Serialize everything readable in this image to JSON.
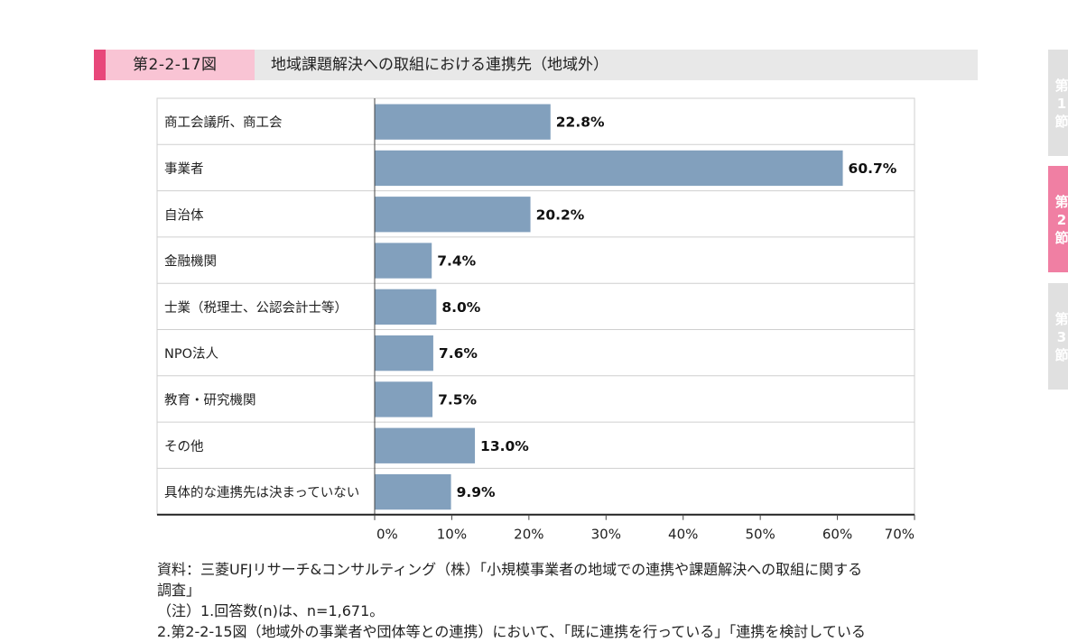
{
  "figure": {
    "number": "第2-2-17図",
    "title": "地域課題解決への取組における連携先（地域外）"
  },
  "chart_data": {
    "type": "bar",
    "orientation": "horizontal",
    "categories": [
      "商工会議所、商工会",
      "事業者",
      "自治体",
      "金融機関",
      "士業（税理士、公認会計士等）",
      "NPO法人",
      "教育・研究機関",
      "その他",
      "具体的な連携先は決まっていない"
    ],
    "values": [
      22.8,
      60.7,
      20.2,
      7.4,
      8.0,
      7.6,
      7.5,
      13.0,
      9.9
    ],
    "value_labels": [
      "22.8%",
      "60.7%",
      "20.2%",
      "7.4%",
      "8.0%",
      "7.6%",
      "7.5%",
      "13.0%",
      "9.9%"
    ],
    "xlim": [
      0,
      70
    ],
    "ticks": [
      0,
      10,
      20,
      30,
      40,
      50,
      60,
      70
    ],
    "tick_labels": [
      "0%",
      "10%",
      "20%",
      "30%",
      "40%",
      "50%",
      "60%",
      "70%"
    ],
    "bar_color": "#82a0bd",
    "grid": false
  },
  "source": {
    "lines": [
      "資料：三菱UFJリサーチ&コンサルティング（株）「小規模事業者の地域での連携や課題解決への取組に関する",
      "調査」",
      "（注）1.回答数(n)は、n=1,671。",
      "2.第2-2-15図（地域外の事業者や団体等との連携）において、「既に連携を行っている」「連携を検討している"
    ]
  },
  "side_tabs": [
    {
      "label": "第1節",
      "chars": [
        "第",
        "1",
        "節"
      ],
      "color": "#e0e0e0",
      "active": false
    },
    {
      "label": "第2節",
      "chars": [
        "第",
        "2",
        "節"
      ],
      "color": "#f07fa3",
      "active": true
    },
    {
      "label": "第3節",
      "chars": [
        "第",
        "3",
        "節"
      ],
      "color": "#e0e0e0",
      "active": false
    }
  ]
}
